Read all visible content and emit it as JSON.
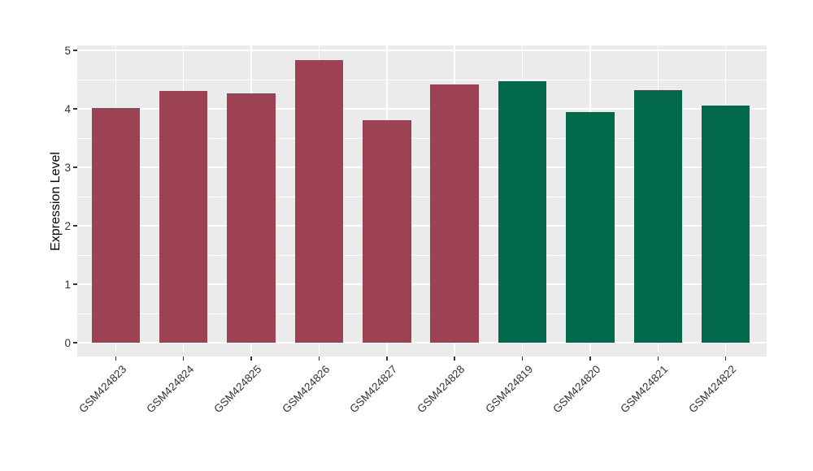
{
  "chart_data": {
    "type": "bar",
    "title": "",
    "ylabel": "Expression Level",
    "xlabel": "",
    "categories": [
      "GSM424823",
      "GSM424824",
      "GSM424825",
      "GSM424826",
      "GSM424827",
      "GSM424828",
      "GSM424819",
      "GSM424820",
      "GSM424821",
      "GSM424822"
    ],
    "values": [
      4.02,
      4.31,
      4.27,
      4.83,
      3.81,
      4.41,
      4.47,
      3.95,
      4.32,
      4.06
    ],
    "bar_colors": [
      "#9C4252",
      "#9C4252",
      "#9C4252",
      "#9C4252",
      "#9C4252",
      "#9C4252",
      "#03694C",
      "#03694C",
      "#03694C",
      "#03694C"
    ],
    "group_colors": {
      "left_group_red": "#9C4252",
      "right_group_green": "#03694C"
    },
    "ylim": [
      -0.24,
      5.08
    ],
    "yticks": [
      0,
      1,
      2,
      3,
      4,
      5
    ],
    "minor_yticks": [
      0.5,
      1.5,
      2.5,
      3.5,
      4.5
    ],
    "grid": true,
    "legend_position": "none",
    "panel_bg": "#EBEBEB",
    "grid_color": "#FFFFFF",
    "background": "#FFFFFF"
  }
}
